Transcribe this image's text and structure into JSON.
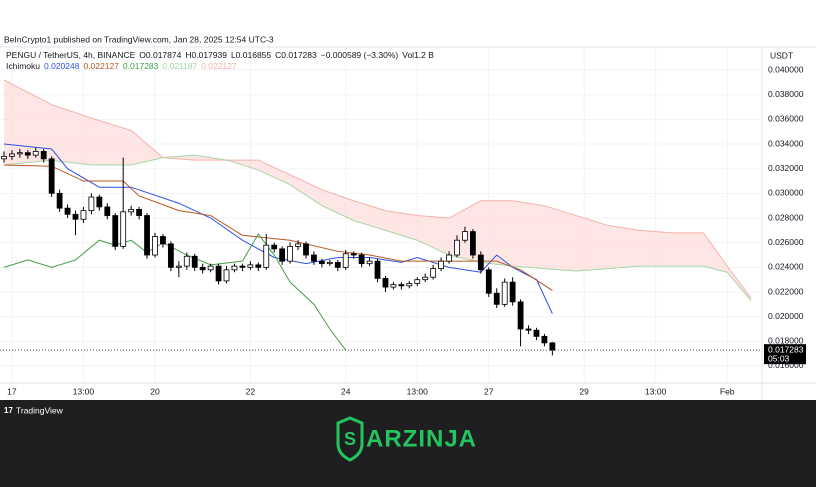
{
  "header": {
    "published": "BeInCrypto1 published on TradingView.com, Jan 28, 2025 12:54 UTC-3",
    "symbol": "PENGU / TetherUS, 4h, BINANCE",
    "open": "O0.017874",
    "high": "H0.017939",
    "low": "L0.016855",
    "close": "C0.017283",
    "change": "−0.000589 (−3.30%)",
    "volume": "Vol1.2 B",
    "indicator": "Ichimoku",
    "indicator_values": [
      "0.020248",
      "0.022127",
      "0.017283",
      "0.021187",
      "0.022127"
    ],
    "currency": "USDT",
    "price_tag": "0.017283",
    "countdown": "05:03"
  },
  "chart_data": {
    "type": "candlestick",
    "up_color": "#ffffff",
    "down_color": "#000000",
    "outline_color": "#000000",
    "grid": true,
    "xlim": [
      -6,
      377.5
    ],
    "ylim": [
      0.01462,
      0.04187
    ],
    "xticks": [
      {
        "value": 0,
        "label": "17"
      },
      {
        "value": 36,
        "label": "13:00"
      },
      {
        "value": 72,
        "label": "20"
      },
      {
        "value": 120,
        "label": "22"
      },
      {
        "value": 168,
        "label": "24"
      },
      {
        "value": 204,
        "label": "13:00"
      },
      {
        "value": 240,
        "label": "27"
      },
      {
        "value": 288,
        "label": "29"
      },
      {
        "value": 324,
        "label": "13:00"
      },
      {
        "value": 360,
        "label": "Feb"
      }
    ],
    "yticks": [
      {
        "value": 0.016,
        "label": "0.016000"
      },
      {
        "value": 0.018,
        "label": "0.018000"
      },
      {
        "value": 0.02,
        "label": "0.020000"
      },
      {
        "value": 0.022,
        "label": "0.022000"
      },
      {
        "value": 0.024,
        "label": "0.024000"
      },
      {
        "value": 0.026,
        "label": "0.026000"
      },
      {
        "value": 0.028,
        "label": "0.028000"
      },
      {
        "value": 0.03,
        "label": "0.030000"
      },
      {
        "value": 0.032,
        "label": "0.032000"
      },
      {
        "value": 0.034,
        "label": "0.034000"
      },
      {
        "value": 0.036,
        "label": "0.036000"
      },
      {
        "value": 0.038,
        "label": "0.038000"
      },
      {
        "value": 0.04,
        "label": "0.040000"
      }
    ],
    "x": [
      -4,
      0,
      4,
      8,
      12,
      16,
      20,
      24,
      28,
      32,
      36,
      40,
      44,
      48,
      52,
      56,
      60,
      64,
      68,
      72,
      76,
      80,
      84,
      88,
      92,
      96,
      100,
      104,
      108,
      112,
      116,
      120,
      124,
      128,
      132,
      136,
      140,
      144,
      148,
      152,
      156,
      160,
      164,
      168,
      172,
      176,
      180,
      184,
      188,
      192,
      196,
      200,
      204,
      208,
      212,
      216,
      220,
      224,
      228,
      232,
      236,
      240,
      244,
      248,
      252,
      256,
      260,
      264,
      268,
      272
    ],
    "open": [
      0.0328,
      0.033,
      0.0332,
      0.0333,
      0.0331,
      0.0334,
      0.0328,
      0.03,
      0.0288,
      0.0283,
      0.0279,
      0.0286,
      0.0297,
      0.0289,
      0.0282,
      0.0257,
      0.0285,
      0.0287,
      0.0282,
      0.025,
      0.0265,
      0.0259,
      0.024,
      0.0241,
      0.0249,
      0.024,
      0.0238,
      0.0241,
      0.0229,
      0.0238,
      0.0241,
      0.024,
      0.0242,
      0.024,
      0.0258,
      0.0255,
      0.0245,
      0.0257,
      0.0259,
      0.025,
      0.0245,
      0.0243,
      0.0244,
      0.024,
      0.0251,
      0.025,
      0.0243,
      0.0245,
      0.0231,
      0.0224,
      0.0226,
      0.0225,
      0.0227,
      0.023,
      0.0232,
      0.0239,
      0.0245,
      0.025,
      0.0262,
      0.0269,
      0.025,
      0.0238,
      0.0219,
      0.021,
      0.0228,
      0.0212,
      0.019,
      0.0189,
      0.0184,
      0.017874
    ],
    "high": [
      0.0334,
      0.0335,
      0.0336,
      0.0335,
      0.0337,
      0.0336,
      0.033,
      0.0303,
      0.0291,
      0.0286,
      0.0289,
      0.03,
      0.0299,
      0.0292,
      0.0284,
      0.0329,
      0.029,
      0.0289,
      0.0284,
      0.0268,
      0.0267,
      0.0261,
      0.0245,
      0.0252,
      0.0251,
      0.0243,
      0.0243,
      0.0243,
      0.0241,
      0.0243,
      0.0243,
      0.0245,
      0.0244,
      0.0267,
      0.026,
      0.0257,
      0.026,
      0.0262,
      0.0261,
      0.0253,
      0.0247,
      0.0246,
      0.0246,
      0.0254,
      0.0253,
      0.0252,
      0.0248,
      0.0247,
      0.0233,
      0.0228,
      0.0228,
      0.0229,
      0.0232,
      0.0235,
      0.0242,
      0.0248,
      0.0253,
      0.0266,
      0.0273,
      0.0271,
      0.0253,
      0.024,
      0.0223,
      0.0231,
      0.0232,
      0.0214,
      0.0193,
      0.0191,
      0.0186,
      0.017939
    ],
    "low": [
      0.0325,
      0.0327,
      0.0329,
      0.0328,
      0.0329,
      0.0325,
      0.0297,
      0.0285,
      0.028,
      0.0266,
      0.0276,
      0.0283,
      0.0286,
      0.0279,
      0.0254,
      0.0255,
      0.0282,
      0.0279,
      0.0247,
      0.0248,
      0.0256,
      0.0237,
      0.0232,
      0.0238,
      0.0237,
      0.0235,
      0.0236,
      0.0226,
      0.0227,
      0.0236,
      0.0237,
      0.0238,
      0.0237,
      0.0238,
      0.0252,
      0.0242,
      0.0243,
      0.0254,
      0.0247,
      0.0242,
      0.024,
      0.0241,
      0.0237,
      0.0238,
      0.0247,
      0.024,
      0.0241,
      0.0228,
      0.022,
      0.0222,
      0.0222,
      0.0223,
      0.0225,
      0.0228,
      0.023,
      0.0237,
      0.0243,
      0.0248,
      0.026,
      0.0247,
      0.0235,
      0.0216,
      0.0207,
      0.0208,
      0.0209,
      0.0176,
      0.0186,
      0.0181,
      0.0176,
      0.016855
    ],
    "close": [
      0.033,
      0.0332,
      0.0333,
      0.0331,
      0.0334,
      0.0328,
      0.03,
      0.0288,
      0.0283,
      0.0279,
      0.0286,
      0.0297,
      0.0289,
      0.0282,
      0.0257,
      0.0285,
      0.0287,
      0.0282,
      0.025,
      0.0265,
      0.0259,
      0.024,
      0.0241,
      0.0249,
      0.024,
      0.0238,
      0.0241,
      0.0229,
      0.0238,
      0.0241,
      0.024,
      0.0242,
      0.024,
      0.0258,
      0.0255,
      0.0245,
      0.0257,
      0.0259,
      0.025,
      0.0245,
      0.0243,
      0.0244,
      0.024,
      0.0251,
      0.025,
      0.0243,
      0.0245,
      0.0231,
      0.0224,
      0.0226,
      0.0225,
      0.0227,
      0.023,
      0.0232,
      0.0239,
      0.0245,
      0.025,
      0.0262,
      0.0269,
      0.025,
      0.0238,
      0.0219,
      0.021,
      0.0228,
      0.0212,
      0.019,
      0.0189,
      0.0184,
      0.017874,
      0.017283
    ],
    "ichimoku": [
      {
        "color": "#2f50e8",
        "x": [
          -4,
          20,
          28,
          44,
          60,
          84,
          100,
          116,
          132,
          148,
          164,
          180,
          196,
          204,
          220,
          236,
          244,
          252,
          264,
          272
        ],
        "values": [
          0.034,
          0.0336,
          0.032,
          0.0305,
          0.0305,
          0.0292,
          0.028,
          0.0262,
          0.0248,
          0.0243,
          0.0248,
          0.0248,
          0.0244,
          0.0248,
          0.024,
          0.0236,
          0.025,
          0.024,
          0.023,
          0.020248
        ]
      },
      {
        "color": "#b8561f",
        "x": [
          -4,
          20,
          36,
          56,
          64,
          84,
          100,
          116,
          140,
          164,
          180,
          196,
          220,
          244,
          256,
          272
        ],
        "values": [
          0.0323,
          0.0322,
          0.031,
          0.031,
          0.0298,
          0.0286,
          0.0282,
          0.0266,
          0.0262,
          0.0253,
          0.025,
          0.0245,
          0.0245,
          0.0245,
          0.0238,
          0.022127
        ]
      },
      {
        "color": "#43a047",
        "x": [
          -4,
          8,
          20,
          32,
          44,
          52,
          60,
          68,
          76,
          88,
          100,
          116,
          124,
          132,
          140,
          152,
          160,
          168
        ],
        "values": [
          0.024,
          0.0246,
          0.024,
          0.0246,
          0.0262,
          0.0258,
          0.0262,
          0.0252,
          0.026,
          0.025,
          0.0242,
          0.0245,
          0.0267,
          0.025,
          0.0228,
          0.021,
          0.019,
          0.017283
        ]
      }
    ],
    "cloud": {
      "fill": "#fcdcd8",
      "x": [
        -4,
        20,
        40,
        60,
        76,
        92,
        108,
        124,
        140,
        156,
        172,
        188,
        204,
        220,
        236,
        252,
        268,
        284,
        300,
        316,
        332,
        348,
        360,
        372
      ],
      "span_a": {
        "color": "#a5d6a7",
        "values": [
          0.0323,
          0.0327,
          0.0323,
          0.0323,
          0.0329,
          0.0331,
          0.0327,
          0.0319,
          0.0307,
          0.029,
          0.0278,
          0.027,
          0.0262,
          0.025,
          0.0244,
          0.0241,
          0.0239,
          0.0237,
          0.0239,
          0.0241,
          0.0241,
          0.0241,
          0.0236,
          0.0213
        ]
      },
      "span_b": {
        "color": "#f4b2ab",
        "values": [
          0.0392,
          0.0372,
          0.0361,
          0.0351,
          0.0329,
          0.0327,
          0.0327,
          0.0327,
          0.0315,
          0.0303,
          0.0294,
          0.0286,
          0.0282,
          0.028,
          0.0294,
          0.0294,
          0.029,
          0.0282,
          0.0274,
          0.027,
          0.0268,
          0.0268,
          0.0241,
          0.0215
        ]
      }
    }
  },
  "footer": {
    "brand": "TradingView",
    "logo": "ARZINJA"
  }
}
